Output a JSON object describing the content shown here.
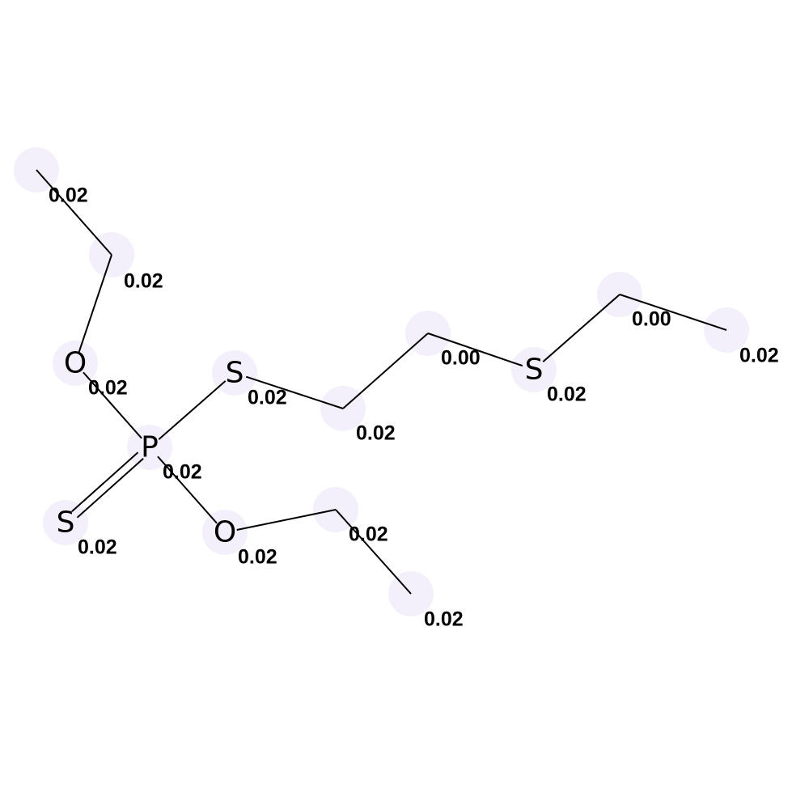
{
  "molecule": {
    "atoms": [
      {
        "id": "c1",
        "symbol": "",
        "value": "0.02"
      },
      {
        "id": "c2",
        "symbol": "",
        "value": "0.02"
      },
      {
        "id": "o1",
        "symbol": "O",
        "value": "0.02"
      },
      {
        "id": "p1",
        "symbol": "P",
        "value": "0.02"
      },
      {
        "id": "s_dbl",
        "symbol": "S",
        "value": "0.02"
      },
      {
        "id": "o2",
        "symbol": "O",
        "value": "0.02"
      },
      {
        "id": "c3",
        "symbol": "",
        "value": "0.02"
      },
      {
        "id": "c4",
        "symbol": "",
        "value": "0.02"
      },
      {
        "id": "s1",
        "symbol": "S",
        "value": "0.02"
      },
      {
        "id": "c5",
        "symbol": "",
        "value": "0.02"
      },
      {
        "id": "c6",
        "symbol": "",
        "value": "0.00"
      },
      {
        "id": "s2",
        "symbol": "S",
        "value": "0.02"
      },
      {
        "id": "c7",
        "symbol": "",
        "value": "0.00"
      },
      {
        "id": "c8",
        "symbol": "",
        "value": "0.02"
      }
    ],
    "bonds": [
      {
        "from": "c1",
        "to": "c2",
        "order": 1
      },
      {
        "from": "c2",
        "to": "o1",
        "order": 1
      },
      {
        "from": "o1",
        "to": "p1",
        "order": 1
      },
      {
        "from": "p1",
        "to": "s_dbl",
        "order": 2
      },
      {
        "from": "p1",
        "to": "o2",
        "order": 1
      },
      {
        "from": "o2",
        "to": "c3",
        "order": 1
      },
      {
        "from": "c3",
        "to": "c4",
        "order": 1
      },
      {
        "from": "p1",
        "to": "s1",
        "order": 1
      },
      {
        "from": "s1",
        "to": "c5",
        "order": 1
      },
      {
        "from": "c5",
        "to": "c6",
        "order": 1
      },
      {
        "from": "c6",
        "to": "s2",
        "order": 1
      },
      {
        "from": "s2",
        "to": "c7",
        "order": 1
      },
      {
        "from": "c7",
        "to": "c8",
        "order": 1
      }
    ]
  },
  "colors": {
    "bond": "#000000",
    "label": "#000000",
    "highlight": "#f3f0fb"
  }
}
